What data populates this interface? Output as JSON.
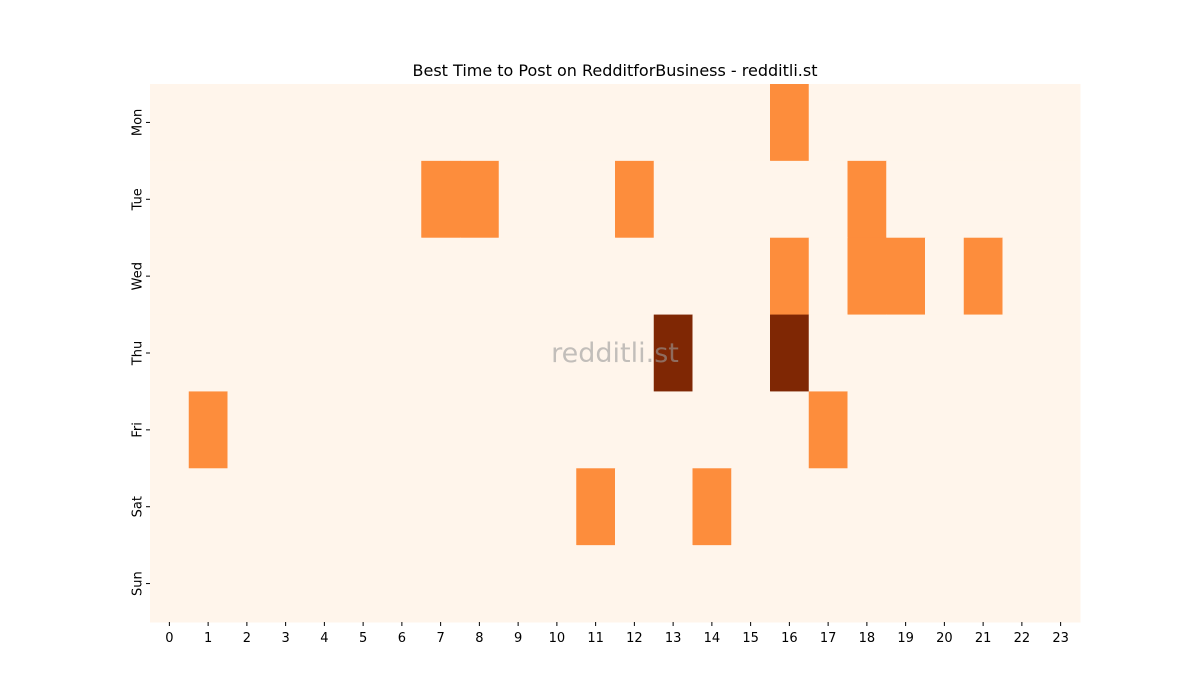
{
  "chart_data": {
    "type": "heatmap",
    "title": "Best Time to Post on RedditforBusiness - redditli.st",
    "watermark": "redditli.st",
    "x": [
      "0",
      "1",
      "2",
      "3",
      "4",
      "5",
      "6",
      "7",
      "8",
      "9",
      "10",
      "11",
      "12",
      "13",
      "14",
      "15",
      "16",
      "17",
      "18",
      "19",
      "20",
      "21",
      "22",
      "23"
    ],
    "y": [
      "Mon",
      "Tue",
      "Wed",
      "Thu",
      "Fri",
      "Sat",
      "Sun"
    ],
    "values": [
      [
        0,
        0,
        0,
        0,
        0,
        0,
        0,
        0,
        0,
        0,
        0,
        0,
        0,
        0,
        0,
        0,
        1,
        0,
        0,
        0,
        0,
        0,
        0,
        0
      ],
      [
        0,
        0,
        0,
        0,
        0,
        0,
        0,
        1,
        1,
        0,
        0,
        0,
        1,
        0,
        0,
        0,
        0,
        0,
        1,
        0,
        0,
        0,
        0,
        0
      ],
      [
        0,
        0,
        0,
        0,
        0,
        0,
        0,
        0,
        0,
        0,
        0,
        0,
        0,
        0,
        0,
        0,
        1,
        0,
        1,
        1,
        0,
        1,
        0,
        0
      ],
      [
        0,
        0,
        0,
        0,
        0,
        0,
        0,
        0,
        0,
        0,
        0,
        0,
        0,
        2,
        0,
        0,
        2,
        0,
        0,
        0,
        0,
        0,
        0,
        0
      ],
      [
        0,
        1,
        0,
        0,
        0,
        0,
        0,
        0,
        0,
        0,
        0,
        0,
        0,
        0,
        0,
        0,
        0,
        1,
        0,
        0,
        0,
        0,
        0,
        0
      ],
      [
        0,
        0,
        0,
        0,
        0,
        0,
        0,
        0,
        0,
        0,
        0,
        1,
        0,
        0,
        1,
        0,
        0,
        0,
        0,
        0,
        0,
        0,
        0,
        0
      ],
      [
        0,
        0,
        0,
        0,
        0,
        0,
        0,
        0,
        0,
        0,
        0,
        0,
        0,
        0,
        0,
        0,
        0,
        0,
        0,
        0,
        0,
        0,
        0,
        0
      ]
    ],
    "colormap": "Oranges",
    "colors": {
      "0": "#fff5eb",
      "1": "#fd8d3c",
      "2": "#7f2704"
    },
    "grid": false,
    "legend": "none"
  }
}
